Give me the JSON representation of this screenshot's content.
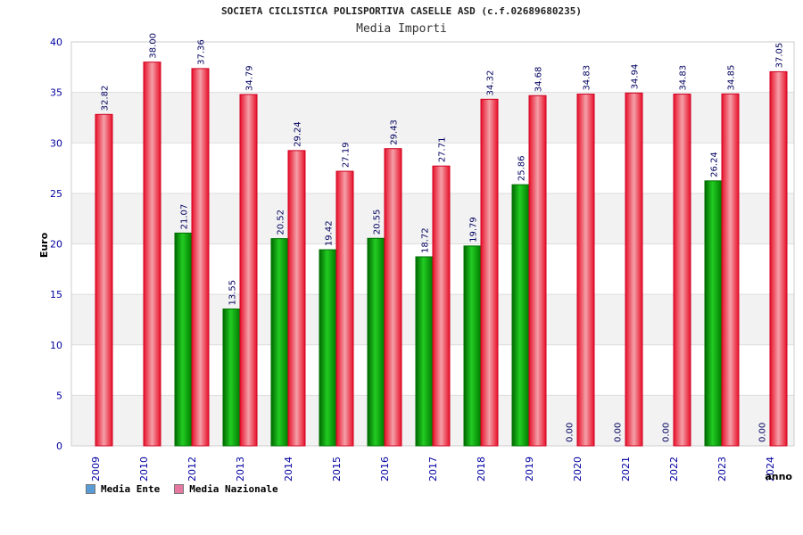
{
  "title": "SOCIETA CICLISTICA POLISPORTIVA CASELLE ASD (c.f.02689680235)",
  "subtitle": "Media Importi",
  "colors": {
    "ente": "#00a000",
    "nazionale": "#e0202a",
    "legend_ente": "#5b9bd5",
    "legend_nazionale": "#e478a0",
    "axis_text": "#0000a0",
    "band": "#f2f2f2"
  },
  "legend": [
    {
      "label": "Media Ente",
      "color": "#5b9bd5"
    },
    {
      "label": "Media Nazionale",
      "color": "#e478a0"
    }
  ],
  "chart_data": {
    "type": "bar",
    "title": "SOCIETA CICLISTICA POLISPORTIVA CASELLE ASD (c.f.02689680235)",
    "subtitle": "Media Importi",
    "xlabel": "anno",
    "ylabel": "Euro",
    "ylim": [
      0,
      40
    ],
    "yticks": [
      0,
      5,
      10,
      15,
      20,
      25,
      30,
      35,
      40
    ],
    "grid": true,
    "legend_position": "bottom-left",
    "categories": [
      "2009",
      "2010",
      "2012",
      "2013",
      "2014",
      "2015",
      "2016",
      "2017",
      "2018",
      "2019",
      "2020",
      "2021",
      "2022",
      "2023",
      "2024"
    ],
    "series": [
      {
        "name": "Media Ente",
        "values": [
          null,
          null,
          21.07,
          13.55,
          20.52,
          19.42,
          20.55,
          18.72,
          19.79,
          25.86,
          0.0,
          0.0,
          0.0,
          26.24,
          0.0
        ],
        "labels": [
          "",
          "",
          "21.07",
          "13.55",
          "20.52",
          "19.42",
          "20.55",
          "18.72",
          "19.79",
          "25.86",
          "0.00",
          "0.00",
          "0.00",
          "26.24",
          "0.00"
        ]
      },
      {
        "name": "Media Nazionale",
        "values": [
          32.82,
          38.0,
          37.36,
          34.79,
          29.24,
          27.19,
          29.43,
          27.71,
          34.32,
          34.68,
          34.83,
          34.94,
          34.83,
          34.85,
          37.05
        ],
        "labels": [
          "32.82",
          "38.00",
          "37.36",
          "34.79",
          "29.24",
          "27.19",
          "29.43",
          "27.71",
          "34.32",
          "34.68",
          "34.83",
          "34.94",
          "34.83",
          "34.85",
          "37.05"
        ]
      }
    ]
  }
}
